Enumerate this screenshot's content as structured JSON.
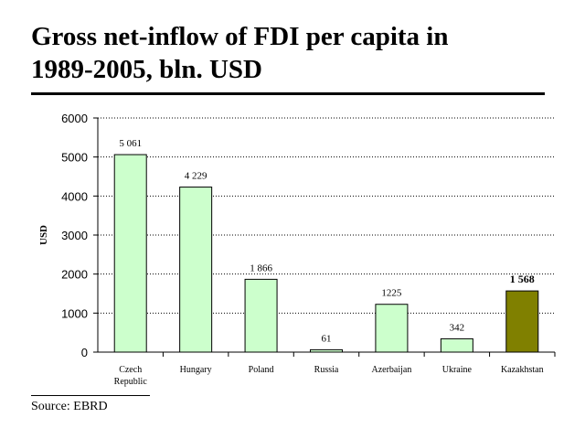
{
  "slide": {
    "title_line1": "Gross net-inflow of FDI per capita in",
    "title_line2": "1989-2005, bln. USD",
    "source": "Source: EBRD"
  },
  "colors": {
    "default_bar": "#ccffcc",
    "highlight_bar": "#808000",
    "bar_stroke": "#000000"
  },
  "chart_data": {
    "type": "bar",
    "title": "",
    "xlabel": "",
    "ylabel": "USD",
    "ylim": [
      0,
      6000
    ],
    "yticks": [
      0,
      1000,
      2000,
      3000,
      4000,
      5000,
      6000
    ],
    "grid": true,
    "categories": [
      [
        "Czech",
        "Republic"
      ],
      [
        "Hungary"
      ],
      [
        "Poland"
      ],
      [
        "Russia"
      ],
      [
        "Azerbaijan"
      ],
      [
        "Ukraine"
      ],
      [
        "Kazakhstan"
      ]
    ],
    "values": [
      5061,
      4229,
      1866,
      61,
      1225,
      342,
      1568
    ],
    "data_labels": [
      "5 061",
      "4 229",
      "1 866",
      "61",
      "1225",
      "342",
      "1 568"
    ],
    "highlight": "Kazakhstan"
  }
}
